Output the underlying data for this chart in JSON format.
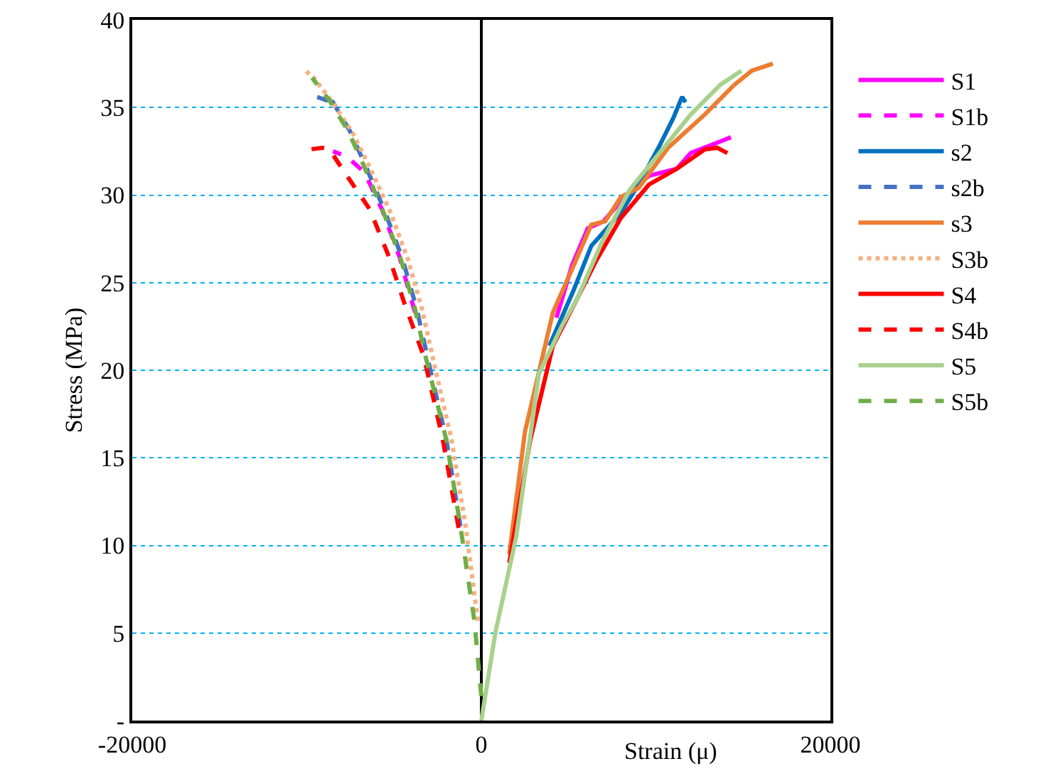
{
  "chart_data": {
    "type": "line",
    "xlabel": "Strain (μ)",
    "ylabel": "Stress (MPa)",
    "xlim": [
      -20000,
      20000
    ],
    "xticks": [
      -20000,
      0,
      20000
    ],
    "ylim": [
      0,
      40
    ],
    "yticks": [
      {
        "value": 0,
        "label": "-"
      },
      5,
      10,
      15,
      20,
      25,
      30,
      35,
      40
    ],
    "grid": "y",
    "legend": "right",
    "marker": "none",
    "line_style": "solid",
    "series": [
      {
        "name": "S1",
        "color": "#ff00ff",
        "x": [
          4300,
          5200,
          6100,
          7000,
          8300,
          9600,
          11200,
          12000,
          14300
        ],
        "values": [
          23,
          26,
          28.1,
          28.5,
          30,
          31.1,
          31.5,
          32.4,
          33.3
        ]
      },
      {
        "name": "S1b",
        "color": "#ff00ff",
        "line_style": "dashed",
        "x": [
          -3800,
          -4700,
          -5700,
          -6700,
          -7700,
          -8500
        ],
        "values": [
          23.3,
          26.5,
          29.2,
          31.3,
          32.2,
          32.5
        ]
      },
      {
        "name": "s2",
        "color": "#0070c0",
        "x": [
          3900,
          5300,
          6300,
          8000,
          9000,
          10200,
          11000,
          11500,
          11700
        ],
        "values": [
          21.4,
          24.6,
          27.1,
          29,
          30.6,
          32.8,
          34.4,
          35.6,
          35.3
        ]
      },
      {
        "name": "s2b",
        "color": "#4472c4",
        "line_style": "dashed",
        "x": [
          -1200,
          -2000,
          -3100,
          -3700,
          -4500,
          -5500,
          -6600,
          -7500,
          -8500,
          -9400,
          -8300
        ],
        "values": [
          11.1,
          16,
          20.8,
          23.5,
          26.3,
          29,
          31.6,
          33.6,
          35.3,
          35.6,
          35.2
        ]
      },
      {
        "name": "s3",
        "color": "#ed7d31",
        "x": [
          1600,
          2500,
          4100,
          5300,
          6300,
          7100,
          8000,
          9000,
          10700,
          12800,
          14500,
          15500,
          16700
        ],
        "values": [
          9.5,
          16.5,
          23.3,
          26,
          28.3,
          28.5,
          29.9,
          30.4,
          32.7,
          34.6,
          36.3,
          37.1,
          37.5
        ]
      },
      {
        "name": "S3b",
        "color": "#f4b183",
        "line_style": "dotted",
        "x": [
          -200,
          -900,
          -1700,
          -2800,
          -3400,
          -4200,
          -5200,
          -6400,
          -7400,
          -8600,
          -9600,
          -10200
        ],
        "values": [
          5.7,
          11.1,
          16,
          20.8,
          23.5,
          26.3,
          29,
          31.6,
          33.6,
          35.4,
          36.7,
          37.2
        ]
      },
      {
        "name": "S4",
        "color": "#ff0000",
        "x": [
          1600,
          2800,
          4100,
          5500,
          6600,
          8000,
          9600,
          11200,
          12800,
          13500,
          14100
        ],
        "values": [
          9,
          16,
          21.4,
          24.1,
          26.3,
          28.7,
          30.6,
          31.5,
          32.6,
          32.7,
          32.4
        ]
      },
      {
        "name": "S4b",
        "color": "#ff0000",
        "line_style": "dashed",
        "x": [
          -1300,
          -2200,
          -3300,
          -4400,
          -5300,
          -6400,
          -7700,
          -8700,
          -9100,
          -9900
        ],
        "values": [
          11,
          16,
          20.8,
          23.8,
          26.5,
          29.2,
          31.1,
          32.6,
          32.7,
          32.6
        ]
      },
      {
        "name": "S5",
        "color": "#a9d18e",
        "x": [
          0,
          800,
          2000,
          3300,
          4600,
          5500,
          6900,
          8500,
          10200,
          12000,
          13700,
          14900
        ],
        "values": [
          0,
          5,
          10.5,
          19.8,
          22.5,
          24.1,
          27.3,
          30.3,
          32.4,
          34.6,
          36.3,
          37.1
        ]
      },
      {
        "name": "S5b",
        "color": "#70ad47",
        "line_style": "dashed",
        "x": [
          0,
          -400,
          -1200,
          -2000,
          -3200,
          -3800,
          -4600,
          -5600,
          -6700,
          -7600,
          -8700,
          -9700
        ],
        "values": [
          1.4,
          5.7,
          11.1,
          16,
          20.8,
          23.5,
          26.3,
          29,
          31.6,
          33.6,
          35.4,
          36.7
        ]
      }
    ]
  }
}
